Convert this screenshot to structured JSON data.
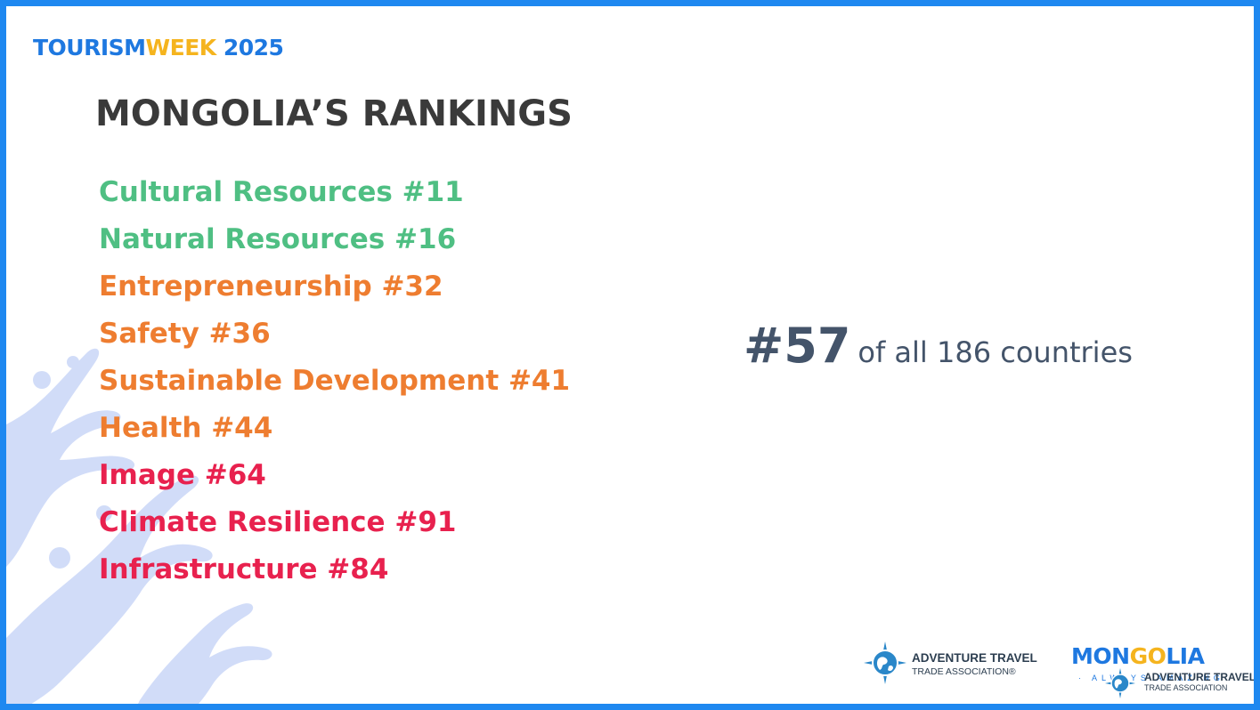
{
  "brand": {
    "part1": "TOURISM",
    "part2": "WEEK",
    "part3": " 2025"
  },
  "title": "MONGOLIA’S RANKINGS",
  "rankings": [
    {
      "label": "Cultural Resources #11",
      "color": "#4fbf83"
    },
    {
      "label": "Natural Resources #16",
      "color": "#4fbf83"
    },
    {
      "label": "Entrepreneurship #32",
      "color": "#ee7d30"
    },
    {
      "label": "Safety #36",
      "color": "#ee7d30"
    },
    {
      "label": "Sustainable Development #41",
      "color": "#ee7d30"
    },
    {
      "label": "Health #44",
      "color": "#ee7d30"
    },
    {
      "label": "Image #64",
      "color": "#e8214e"
    },
    {
      "label": "Climate Resilience #91",
      "color": "#e8214e"
    },
    {
      "label": "Infrastructure #84",
      "color": "#e8214e"
    }
  ],
  "overall": {
    "rank": "#57",
    "text": "of all 186 countries"
  },
  "footer": {
    "atta_line1": "ADVENTURE TRAVEL",
    "atta_line2": "TRADE ASSOCIATION®",
    "mongolia_part1": "MON",
    "mongolia_part2": "GO",
    "mongolia_part3": "LIA",
    "mongolia_tagline": "· ALWAYS AMAZING",
    "atta2_line1": "ADVENTURE TRAVEL",
    "atta2_line2": "TRADE ASSOCIATION"
  },
  "colors": {
    "border": "#1e88f0",
    "green": "#4fbf83",
    "orange": "#ee7d30",
    "red": "#e8214e",
    "title": "#3a3a3a",
    "overall": "#44546a"
  },
  "icons": {
    "atta_logo": "globe-compass-icon",
    "decor": "ornament-swirl"
  }
}
